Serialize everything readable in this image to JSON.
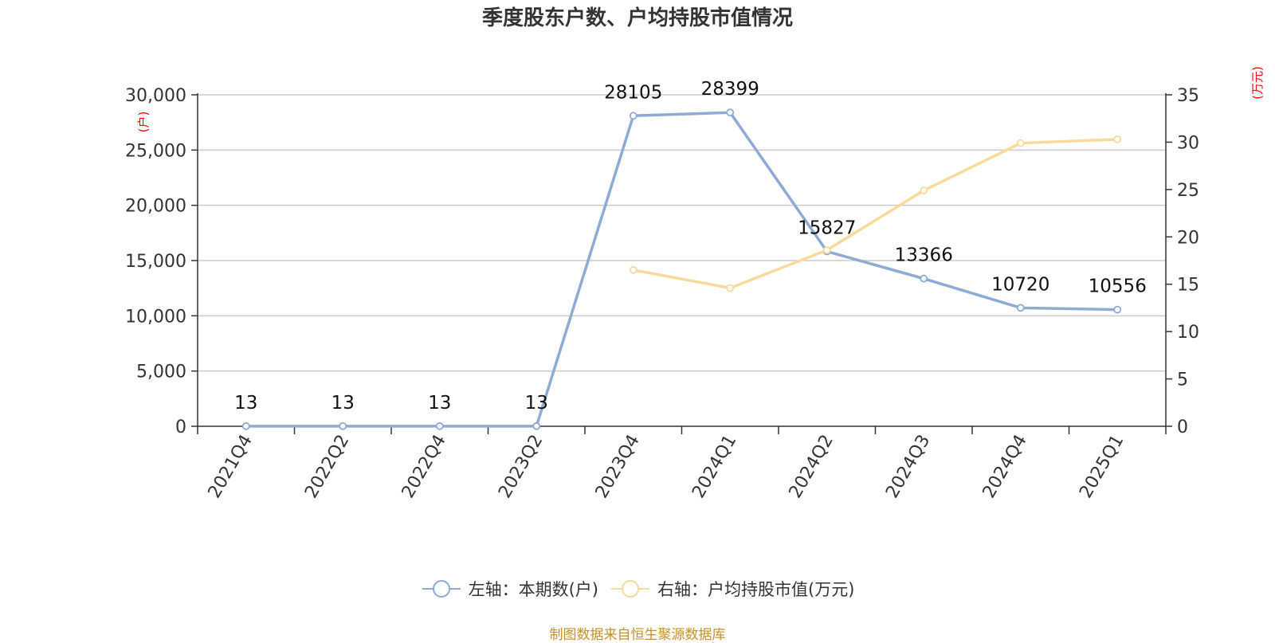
{
  "chart_data": {
    "type": "line",
    "title": "季度股东户数、户均持股市值情况",
    "categories": [
      "2021Q4",
      "2022Q2",
      "2022Q4",
      "2023Q2",
      "2023Q4",
      "2024Q1",
      "2024Q2",
      "2024Q3",
      "2024Q4",
      "2025Q1"
    ],
    "series": [
      {
        "name": "左轴：本期数(户)",
        "axis": "left",
        "color": "#8eabd6",
        "values": [
          13,
          13,
          13,
          13,
          28105,
          28399,
          15827,
          13366,
          10720,
          10556
        ],
        "labels": [
          "13",
          "13",
          "13",
          "13",
          "28105",
          "28399",
          "15827",
          "13366",
          "10720",
          "10556"
        ]
      },
      {
        "name": "右轴：户均持股市值(万元)",
        "axis": "right",
        "color": "#fbd99a",
        "values": [
          null,
          null,
          null,
          null,
          16.5,
          14.6,
          18.6,
          24.9,
          29.9,
          30.3
        ]
      }
    ],
    "y_left": {
      "label": "(户)",
      "range": [
        0,
        30000
      ],
      "ticks": [
        0,
        5000,
        10000,
        15000,
        20000,
        25000,
        30000
      ],
      "tick_labels": [
        "0",
        "5,000",
        "10,000",
        "15,000",
        "20,000",
        "25,000",
        "30,000"
      ]
    },
    "y_right": {
      "label": "(万元)",
      "range": [
        0,
        35
      ],
      "ticks": [
        0,
        5,
        10,
        15,
        20,
        25,
        30,
        35
      ],
      "tick_labels": [
        "0",
        "5",
        "10",
        "15",
        "20",
        "25",
        "30",
        "35"
      ]
    },
    "grid": true,
    "legend_position": "bottom-center",
    "axis_label_color": "#ff0000"
  },
  "source_note": "制图数据来自恒生聚源数据库"
}
